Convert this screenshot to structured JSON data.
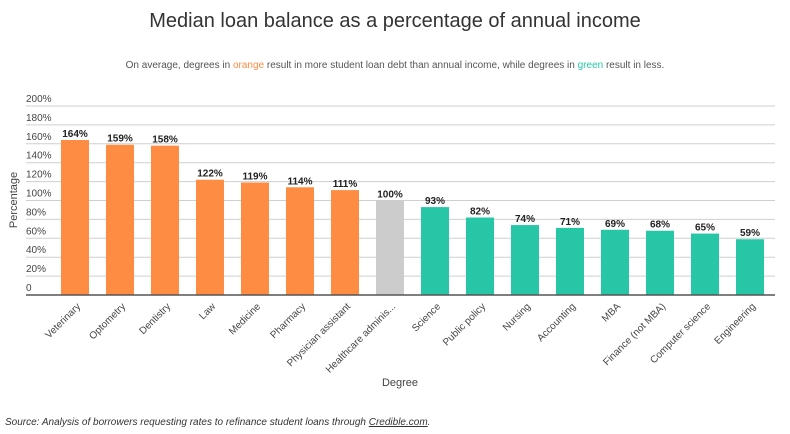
{
  "chart_data": {
    "type": "bar",
    "title": "Median loan balance as a percentage of annual income",
    "subtitle": {
      "part1": "On average, degrees in ",
      "orange_word": "orange",
      "part2": " result in more student loan debt than annual income, while degrees in ",
      "green_word": "green",
      "part3": " result in less."
    },
    "xlabel": "Degree",
    "ylabel": "Percentage",
    "ylim": [
      0,
      200
    ],
    "yticks": [
      "0",
      "20%",
      "40%",
      "60%",
      "80%",
      "100%",
      "120%",
      "140%",
      "160%",
      "180%",
      "200%"
    ],
    "grid": true,
    "categories": [
      "Veterinary",
      "Optometry",
      "Dentistry",
      "Law",
      "Medicine",
      "Pharmacy",
      "Physician assistant",
      "Healthcare adminis...",
      "Science",
      "Public policy",
      "Nursing",
      "Accounting",
      "MBA",
      "Finance (not MBA)",
      "Computer science",
      "Engineering"
    ],
    "values": [
      164,
      159,
      158,
      122,
      119,
      114,
      111,
      100,
      93,
      82,
      74,
      71,
      69,
      68,
      65,
      59
    ],
    "colors": {
      "above": "#ff8c42",
      "equal": "#cccccc",
      "below": "#26c6a6"
    },
    "source": {
      "prefix": "Source: Analysis of borrowers requesting rates to refinance student loans through ",
      "link": "Credible.com",
      "suffix": "."
    }
  }
}
